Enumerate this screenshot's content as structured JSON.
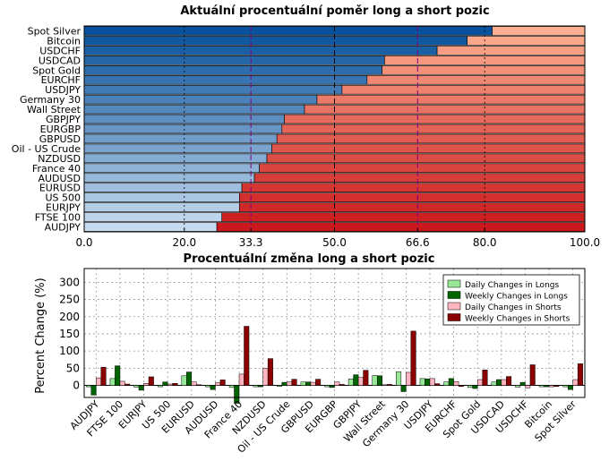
{
  "chart_data": [
    {
      "type": "bar",
      "orientation": "horizontal-stacked",
      "title": "Aktuální procentuální poměr long a short pozic",
      "categories": [
        "Spot Silver",
        "Bitcoin",
        "USDCHF",
        "USDCAD",
        "Spot Gold",
        "EURCHF",
        "USDJPY",
        "Germany 30",
        "Wall Street",
        "GBPJPY",
        "EURGBP",
        "GBPUSD",
        "Oil - US Crude",
        "NZDUSD",
        "France 40",
        "AUDUSD",
        "EURUSD",
        "US 500",
        "EURJPY",
        "FTSE 100",
        "AUDJPY"
      ],
      "long_values": [
        81.5,
        76.5,
        70.5,
        60,
        59.5,
        56.5,
        51.5,
        46.5,
        44,
        40,
        39.5,
        38.5,
        37.5,
        36.5,
        35,
        34,
        31.5,
        31,
        31,
        27.5,
        26.5
      ],
      "xlim": [
        0,
        100
      ],
      "xticks": [
        "0.0",
        "20.0",
        "33.3",
        "50.0",
        "66.6",
        "80.0",
        "100.0"
      ],
      "xtick_values": [
        0,
        20,
        33.3,
        50,
        66.6,
        80,
        100
      ],
      "reference_lines": [
        33.3,
        50,
        66.6
      ],
      "grid": true
    },
    {
      "type": "bar",
      "title": "Procentuální změna long a short pozic",
      "ylabel": "Percent Change (%)",
      "ylim": [
        -35,
        340
      ],
      "yticks": [
        -50,
        0,
        50,
        100,
        150,
        200,
        250,
        300
      ],
      "categories": [
        "AUDJPY",
        "FTSE 100",
        "EURJPY",
        "US 500",
        "EURUSD",
        "AUDUSD",
        "France 40",
        "NZDUSD",
        "Oil - US Crude",
        "GBPUSD",
        "EURGBP",
        "GBPJPY",
        "Wall Street",
        "Germany 30",
        "USDJPY",
        "EURCHF",
        "Spot Gold",
        "USDCAD",
        "USDCHF",
        "Bitcoin",
        "Spot Silver"
      ],
      "series": [
        {
          "name": "Daily Changes in Longs",
          "color": "#98e898",
          "values": [
            -4,
            20,
            -5,
            -4,
            28,
            -4,
            -6,
            -4,
            -3,
            10,
            -4,
            19,
            29,
            40,
            20,
            10,
            -6,
            10,
            -5,
            -4,
            -4
          ]
        },
        {
          "name": "Weekly Changes in Longs",
          "color": "#006400",
          "values": [
            -28,
            57,
            -14,
            10,
            39,
            -12,
            -52,
            -4,
            9,
            10,
            -6,
            31,
            28,
            -18,
            19,
            20,
            -9,
            17,
            9,
            -4,
            -12
          ]
        },
        {
          "name": "Daily Changes in Shorts",
          "color": "#ffb6c1",
          "values": [
            22,
            12,
            6,
            4,
            10,
            8,
            33,
            50,
            10,
            9,
            10,
            23,
            2,
            38,
            20,
            11,
            17,
            17,
            -7,
            -4,
            17
          ]
        },
        {
          "name": "Weekly Changes in Shorts",
          "color": "#8b0000",
          "values": [
            53,
            4,
            25,
            6,
            2,
            16,
            172,
            78,
            18,
            18,
            3,
            44,
            3,
            158,
            5,
            -3,
            45,
            26,
            60,
            -3,
            63
          ]
        }
      ],
      "legend_position": "top-right",
      "grid": true
    }
  ],
  "colors": {
    "long_dark": "#08519c",
    "long_light": "#c6dbef",
    "short_light": "#fcae91",
    "short_dark": "#cb181d",
    "ref_line_purple": "#800080",
    "tick_purple": "#800080"
  }
}
